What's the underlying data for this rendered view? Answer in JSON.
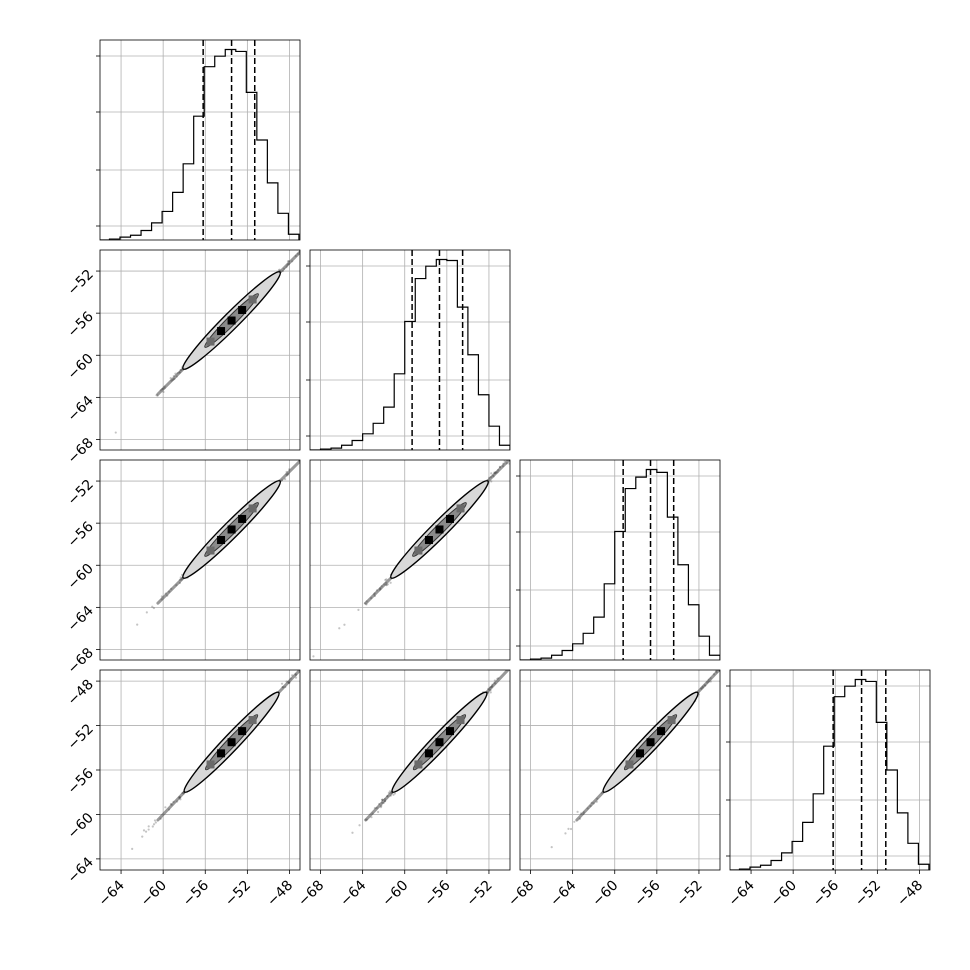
{
  "figure": {
    "type": "corner_plot",
    "grid": true
  },
  "chart_data": [
    {
      "type": "histogram",
      "panel": "diag-0",
      "xlim": [
        -66,
        -47
      ],
      "x_ticks": [
        "−64",
        "−60",
        "−56",
        "−52",
        "−48"
      ],
      "quantile_lines": [
        -56.2,
        -53.5,
        -51.3
      ],
      "bin_edges": [
        -66.1,
        -65.1,
        -64.1,
        -63.1,
        -62.1,
        -61.1,
        -60.1,
        -59.1,
        -58.1,
        -57.1,
        -56.1,
        -55.1,
        -54.1,
        -53.1,
        -52.1,
        -51.1,
        -50.1,
        -49.1,
        -48.1,
        -47.1
      ],
      "counts": [
        0,
        1,
        3,
        5,
        10,
        18,
        30,
        50,
        80,
        130,
        182,
        193,
        200,
        198,
        155,
        105,
        60,
        28,
        6
      ]
    },
    {
      "type": "histogram",
      "panel": "diag-1",
      "xlim": [
        -69,
        -50
      ],
      "x_ticks": [
        "−68",
        "−64",
        "−60",
        "−56",
        "−52"
      ],
      "quantile_lines": [
        -59.3,
        -56.7,
        -54.5
      ],
      "bin_edges": [
        -69.0,
        -68.0,
        -67.0,
        -66.0,
        -65.0,
        -64.0,
        -63.0,
        -62.0,
        -61.0,
        -60.0,
        -59.0,
        -58.0,
        -57.0,
        -56.0,
        -55.0,
        -54.0,
        -53.0,
        -52.0,
        -51.0,
        -50.0
      ],
      "counts": [
        0,
        1,
        2,
        5,
        10,
        17,
        28,
        45,
        80,
        135,
        180,
        193,
        200,
        199,
        150,
        100,
        58,
        25,
        5
      ]
    },
    {
      "type": "histogram",
      "panel": "diag-2",
      "xlim": [
        -69,
        -50
      ],
      "x_ticks": [
        "−68",
        "−64",
        "−60",
        "−56",
        "−52"
      ],
      "quantile_lines": [
        -59.2,
        -56.6,
        -54.4
      ],
      "bin_edges": [
        -69.0,
        -68.0,
        -67.0,
        -66.0,
        -65.0,
        -64.0,
        -63.0,
        -62.0,
        -61.0,
        -60.0,
        -59.0,
        -58.0,
        -57.0,
        -56.0,
        -55.0,
        -54.0,
        -53.0,
        -52.0,
        -51.0,
        -50.0
      ],
      "counts": [
        0,
        1,
        2,
        5,
        10,
        17,
        28,
        45,
        80,
        135,
        180,
        192,
        200,
        197,
        150,
        100,
        58,
        25,
        5
      ]
    },
    {
      "type": "histogram",
      "panel": "diag-3",
      "xlim": [
        -66,
        -47
      ],
      "x_ticks": [
        "−64",
        "−60",
        "−56",
        "−52",
        "−48"
      ],
      "quantile_lines": [
        -56.2,
        -53.5,
        -51.2
      ],
      "bin_edges": [
        -66.1,
        -65.1,
        -64.1,
        -63.1,
        -62.1,
        -61.1,
        -60.1,
        -59.1,
        -58.1,
        -57.1,
        -56.1,
        -55.1,
        -54.1,
        -53.1,
        -52.1,
        -51.1,
        -50.1,
        -49.1,
        -48.1,
        -47.1
      ],
      "counts": [
        0,
        1,
        3,
        5,
        10,
        18,
        30,
        50,
        80,
        130,
        182,
        193,
        200,
        198,
        155,
        105,
        60,
        28,
        6
      ]
    },
    {
      "type": "scatter",
      "panel": "pair-1-0",
      "x_param": 0,
      "y_param": 1,
      "xlim": [
        -66,
        -47
      ],
      "ylim": [
        -69,
        -50
      ],
      "y_ticks": [
        "−52",
        "−56",
        "−60",
        "−64",
        "−68"
      ],
      "density_contours": true,
      "center": [
        -53.5,
        -56.7
      ],
      "spread": 2.2
    },
    {
      "type": "scatter",
      "panel": "pair-2-0",
      "x_param": 0,
      "y_param": 2,
      "xlim": [
        -66,
        -47
      ],
      "ylim": [
        -69,
        -50
      ],
      "y_ticks": [
        "−52",
        "−56",
        "−60",
        "−64",
        "−68"
      ],
      "density_contours": true,
      "center": [
        -53.5,
        -56.6
      ],
      "spread": 2.2
    },
    {
      "type": "scatter",
      "panel": "pair-2-1",
      "x_param": 1,
      "y_param": 2,
      "xlim": [
        -69,
        -50
      ],
      "ylim": [
        -69,
        -50
      ],
      "density_contours": true,
      "center": [
        -56.7,
        -56.6
      ],
      "spread": 2.2
    },
    {
      "type": "scatter",
      "panel": "pair-3-0",
      "x_param": 0,
      "y_param": 3,
      "xlim": [
        -66,
        -47
      ],
      "ylim": [
        -65,
        -47
      ],
      "y_ticks": [
        "−48",
        "−52",
        "−56",
        "−60",
        "−64"
      ],
      "density_contours": true,
      "center": [
        -53.5,
        -53.5
      ],
      "spread": 2.2
    },
    {
      "type": "scatter",
      "panel": "pair-3-1",
      "x_param": 1,
      "y_param": 3,
      "xlim": [
        -69,
        -50
      ],
      "ylim": [
        -65,
        -47
      ],
      "density_contours": true,
      "center": [
        -56.7,
        -53.5
      ],
      "spread": 2.2
    },
    {
      "type": "scatter",
      "panel": "pair-3-2",
      "x_param": 2,
      "y_param": 3,
      "xlim": [
        -69,
        -50
      ],
      "ylim": [
        -65,
        -47
      ],
      "density_contours": true,
      "center": [
        -56.6,
        -53.5
      ],
      "spread": 2.2
    }
  ]
}
